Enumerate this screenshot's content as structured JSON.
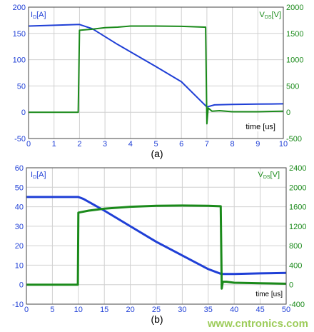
{
  "chart_data": [
    {
      "type": "line",
      "panel_label": "(a)",
      "left_axis_label": {
        "main": "I",
        "sub": "D",
        "unit": "[A]"
      },
      "right_axis_label": {
        "main": "V",
        "sub": "DS",
        "unit": "[V]"
      },
      "xlabel": "time [us]",
      "xlim": [
        0,
        10
      ],
      "ylim_left": [
        -50,
        200
      ],
      "ylim_right": [
        -500,
        2000
      ],
      "xticks": [
        "0",
        "1",
        "2",
        "3",
        "4",
        "5",
        "6",
        "7",
        "8",
        "9",
        "10"
      ],
      "yticks_left": [
        "-50",
        "0",
        "50",
        "100",
        "150",
        "200"
      ],
      "yticks_right": [
        "-500",
        "0",
        "500",
        "1000",
        "1500",
        "2000"
      ],
      "grid": true,
      "series": [
        {
          "name": "ID",
          "axis": "left",
          "color": "#1f3fd6",
          "points": [
            [
              0,
              164
            ],
            [
              1,
              165.5
            ],
            [
              2,
              167
            ],
            [
              2.5,
              159
            ],
            [
              3.5,
              129
            ],
            [
              5,
              87
            ],
            [
              6,
              58
            ],
            [
              7,
              10
            ],
            [
              7.3,
              14
            ],
            [
              8,
              15
            ],
            [
              9,
              15.5
            ],
            [
              10,
              16
            ]
          ]
        },
        {
          "name": "VDS",
          "axis": "right",
          "color": "#1a8a1a",
          "points": [
            [
              0,
              0
            ],
            [
              1,
              0
            ],
            [
              1.95,
              0
            ],
            [
              2,
              1560
            ],
            [
              2.5,
              1580
            ],
            [
              3,
              1610
            ],
            [
              3.5,
              1620
            ],
            [
              4,
              1640
            ],
            [
              5,
              1640
            ],
            [
              6,
              1635
            ],
            [
              6.9,
              1620
            ],
            [
              6.95,
              1620
            ],
            [
              7,
              -220
            ],
            [
              7.05,
              80
            ],
            [
              7.2,
              20
            ],
            [
              7.5,
              30
            ],
            [
              8,
              10
            ],
            [
              9,
              10
            ],
            [
              10,
              20
            ]
          ]
        }
      ]
    },
    {
      "type": "line",
      "panel_label": "(b)",
      "left_axis_label": {
        "main": "I",
        "sub": "D",
        "unit": "[A]"
      },
      "right_axis_label": {
        "main": "V",
        "sub": "DS",
        "unit": "[V]"
      },
      "xlabel": "time [us]",
      "xlim": [
        0,
        50
      ],
      "ylim_left": [
        -10,
        60
      ],
      "ylim_right": [
        -400,
        2400
      ],
      "xticks": [
        "0",
        "5",
        "10",
        "15",
        "20",
        "25",
        "30",
        "35",
        "40",
        "45",
        "50"
      ],
      "yticks_left": [
        "-10",
        "0",
        "10",
        "20",
        "30",
        "40",
        "50",
        "60"
      ],
      "yticks_right": [
        "-400",
        "0",
        "400",
        "800",
        "1200",
        "1600",
        "2000",
        "2400"
      ],
      "grid": true,
      "series": [
        {
          "name": "ID",
          "axis": "left",
          "color": "#1f3fd6",
          "points": [
            [
              0,
              45
            ],
            [
              5,
              45
            ],
            [
              10,
              45
            ],
            [
              11,
              44
            ],
            [
              15,
              38
            ],
            [
              20,
              30
            ],
            [
              25,
              22
            ],
            [
              30,
              15
            ],
            [
              35,
              8
            ],
            [
              37.5,
              5.5
            ],
            [
              38,
              5.5
            ],
            [
              40,
              5.5
            ],
            [
              45,
              5.8
            ],
            [
              50,
              6
            ]
          ]
        },
        {
          "name": "VDS",
          "axis": "right",
          "color": "#1a8a1a",
          "points": [
            [
              0,
              0
            ],
            [
              5,
              0
            ],
            [
              9.9,
              0
            ],
            [
              10,
              1480
            ],
            [
              12,
              1520
            ],
            [
              15,
              1560
            ],
            [
              20,
              1600
            ],
            [
              25,
              1620
            ],
            [
              30,
              1625
            ],
            [
              35,
              1620
            ],
            [
              37.3,
              1610
            ],
            [
              37.4,
              1610
            ],
            [
              37.6,
              -80
            ],
            [
              37.8,
              60
            ],
            [
              38.5,
              60
            ],
            [
              40,
              40
            ],
            [
              45,
              30
            ],
            [
              50,
              20
            ]
          ]
        }
      ]
    }
  ],
  "watermark": "www.cntronics.com",
  "colors": {
    "current": "#1f3fd6",
    "voltage": "#1a8a1a",
    "grid": "#d0d0d0",
    "axis": "#444444"
  }
}
